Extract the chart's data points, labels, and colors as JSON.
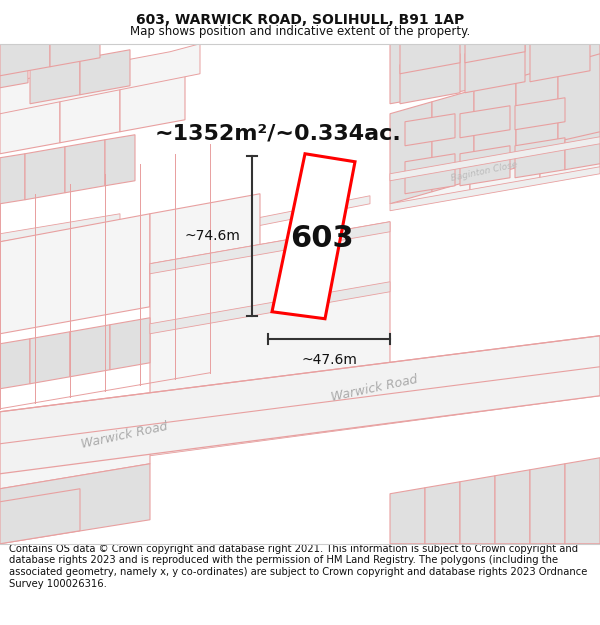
{
  "title": "603, WARWICK ROAD, SOLIHULL, B91 1AP",
  "subtitle": "Map shows position and indicative extent of the property.",
  "footer": "Contains OS data © Crown copyright and database right 2021. This information is subject to Crown copyright and database rights 2023 and is reproduced with the permission of HM Land Registry. The polygons (including the associated geometry, namely x, y co-ordinates) are subject to Crown copyright and database rights 2023 Ordnance Survey 100026316.",
  "area_label": "~1352m²/~0.334ac.",
  "width_label": "~47.6m",
  "height_label": "~74.6m",
  "property_number": "603",
  "road_label_1": "Warwick Road",
  "road_label_2": "Warwick Road",
  "street_label": "Baginton Close",
  "map_bg": "#ffffff",
  "parcel_fill": "#eeeeee",
  "parcel_outline": "#e8a0a0",
  "building_fill": "#e0e0e0",
  "road_fill": "#e8e8e8",
  "road_outline": "#d8a0a0",
  "property_edge": "#ff0000",
  "dim_color": "#333333",
  "road_text_color": "#aaaaaa",
  "street_text_color": "#bbbbbb",
  "title_fontsize": 10,
  "subtitle_fontsize": 8.5,
  "footer_fontsize": 7.2,
  "area_fontsize": 16,
  "dim_fontsize": 10,
  "num_fontsize": 22
}
